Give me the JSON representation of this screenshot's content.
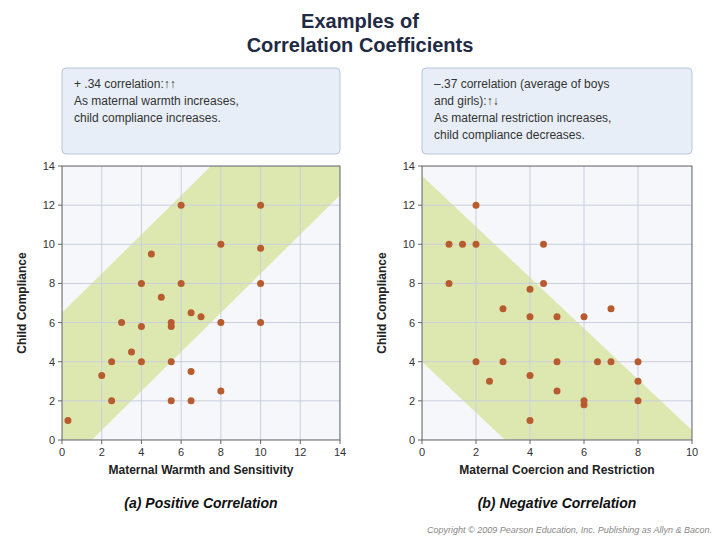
{
  "title": "Examples of\nCorrelation Coefficients",
  "annotations": [
    "Copyright © 2009 Pearson Education, Inc. Publishing as Allyn & Bacon."
  ],
  "chart_data": [
    {
      "type": "scatter",
      "subtitle": "(a) Positive Correlation",
      "annotations": [
        "+ .34 correlation:↑↑\nAs maternal warmth increases,\nchild compliance increases."
      ],
      "xlabel": "Maternal Warmth and Sensitivity",
      "ylabel": "Child Compliance",
      "xlim": [
        0,
        14
      ],
      "ylim": [
        0,
        14
      ],
      "xticks": [
        0,
        2,
        4,
        6,
        8,
        10,
        12,
        14
      ],
      "yticks": [
        0,
        2,
        4,
        6,
        8,
        10,
        12,
        14
      ],
      "grid": true,
      "color": "#B85C30",
      "band": {
        "slope": 1.0,
        "lower_intercept": -1.5,
        "upper_intercept": 6.5
      },
      "x": [
        0.3,
        2,
        2.5,
        2.5,
        3,
        3.5,
        4,
        4,
        4,
        4.5,
        5,
        5.5,
        5.5,
        5.5,
        5.5,
        6,
        6,
        6.5,
        6.5,
        6.5,
        7,
        8,
        8,
        8,
        10,
        10,
        10,
        10
      ],
      "values": [
        1,
        3.3,
        2,
        4,
        6,
        4.5,
        8,
        5.8,
        4,
        9.5,
        7.3,
        6,
        5.8,
        4,
        2,
        12,
        8,
        6.5,
        3.5,
        2,
        6.3,
        10,
        2.5,
        6,
        12,
        9.8,
        8,
        6
      ]
    },
    {
      "type": "scatter",
      "subtitle": "(b) Negative Correlation",
      "annotations": [
        "–.37 correlation (average of boys\nand girls):↑↓\nAs maternal restriction increases,\nchild compliance decreases."
      ],
      "xlabel": "Maternal Coercion and Restriction",
      "ylabel": "Child Compliance",
      "xlim": [
        0,
        10
      ],
      "ylim": [
        0,
        14
      ],
      "xticks": [
        0,
        2,
        4,
        6,
        8,
        10
      ],
      "yticks": [
        0,
        2,
        4,
        6,
        8,
        10,
        12,
        14
      ],
      "grid": true,
      "color": "#B85C30",
      "band": {
        "slope": -1.3,
        "lower_intercept": 4.0,
        "upper_intercept": 13.5
      },
      "x": [
        1,
        1.5,
        2,
        1,
        2,
        2,
        2.5,
        3,
        3,
        4,
        4,
        4,
        4,
        4.5,
        4.5,
        5,
        5,
        5,
        6,
        6,
        6,
        6.5,
        7,
        7,
        8,
        8,
        8
      ],
      "values": [
        10,
        10,
        10,
        8,
        12,
        4,
        3,
        6.7,
        4,
        7.7,
        6.3,
        3.3,
        1,
        10,
        8,
        6.3,
        4,
        2.5,
        6.3,
        2,
        1.8,
        4,
        6.7,
        4,
        4,
        3,
        2
      ]
    }
  ]
}
